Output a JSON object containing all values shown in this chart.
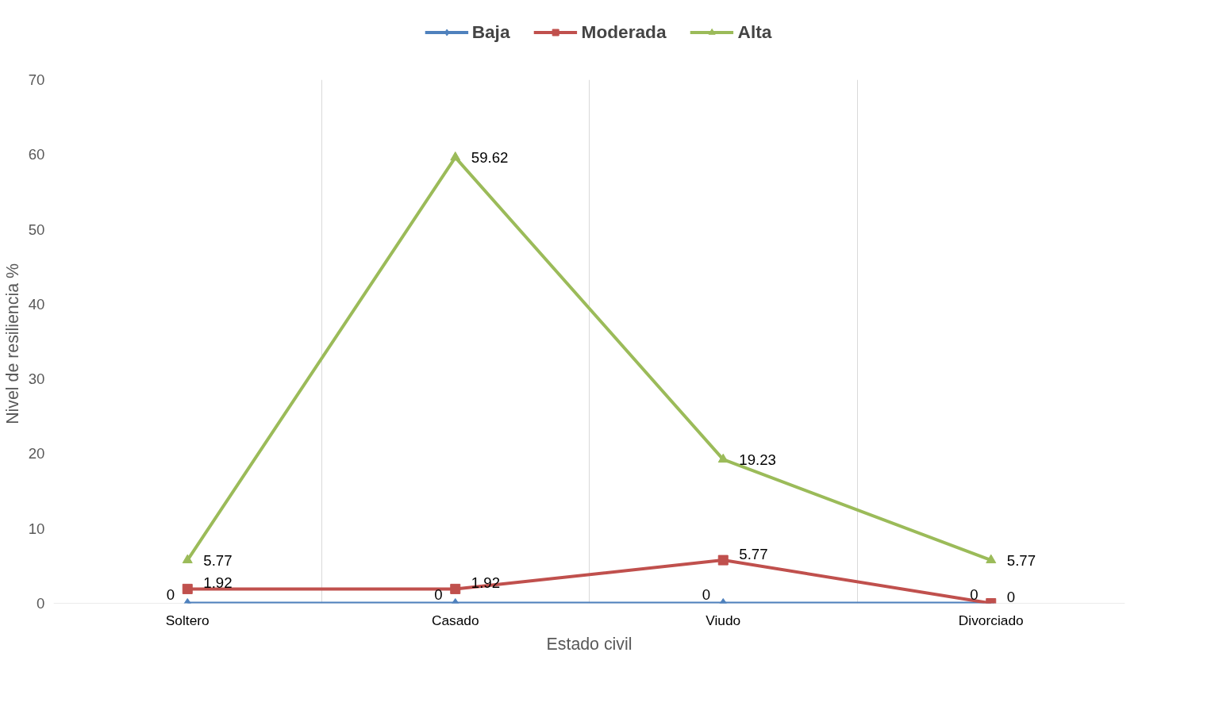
{
  "chart_data": {
    "type": "line",
    "xlabel": "Estado civil",
    "ylabel": "Nivel  de resiliencia %",
    "categories": [
      "Soltero",
      "Casado",
      "Viudo",
      "Divorciado"
    ],
    "series": [
      {
        "name": "Baja",
        "color": "#4f81bd",
        "marker": "diamond",
        "values": [
          0,
          0,
          0,
          0
        ]
      },
      {
        "name": "Moderada",
        "color": "#c0504d",
        "marker": "square",
        "values": [
          1.92,
          1.92,
          5.77,
          0
        ]
      },
      {
        "name": "Alta",
        "color": "#9bbb59",
        "marker": "triangle",
        "values": [
          5.77,
          59.62,
          19.23,
          5.77
        ]
      }
    ],
    "ylim": [
      0,
      70
    ],
    "yticks": [
      0,
      10,
      20,
      30,
      40,
      50,
      60,
      70
    ],
    "grid": "x",
    "legend": "top",
    "data_labels": true,
    "line_style": "solid"
  }
}
